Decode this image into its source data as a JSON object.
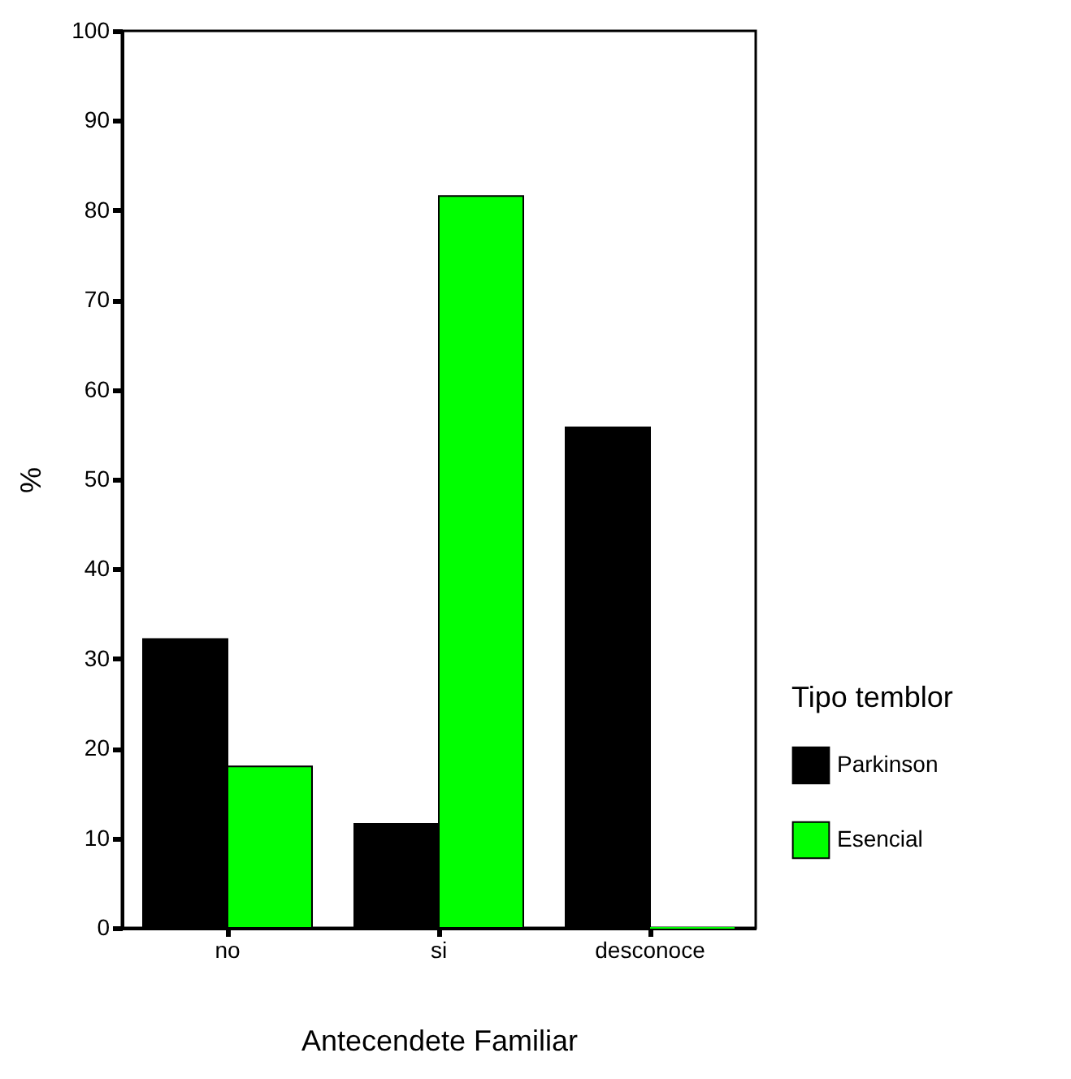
{
  "chart_data": {
    "type": "bar",
    "xlabel": "Antecendete  Familiar",
    "ylabel": "%",
    "legend_title": "Tipo temblor",
    "categories": [
      "no",
      "si",
      "desconoce"
    ],
    "series": [
      {
        "name": "Parkinson",
        "color": "#000000",
        "values": [
          32.2,
          11.6,
          55.8
        ]
      },
      {
        "name": "Esencial",
        "color": "#00ff00",
        "values": [
          18.0,
          81.6,
          0
        ]
      }
    ],
    "ylim": [
      0,
      100
    ],
    "yticks": [
      0,
      10,
      20,
      30,
      40,
      50,
      60,
      70,
      80,
      90,
      100
    ],
    "grid": false,
    "legend": "right"
  }
}
